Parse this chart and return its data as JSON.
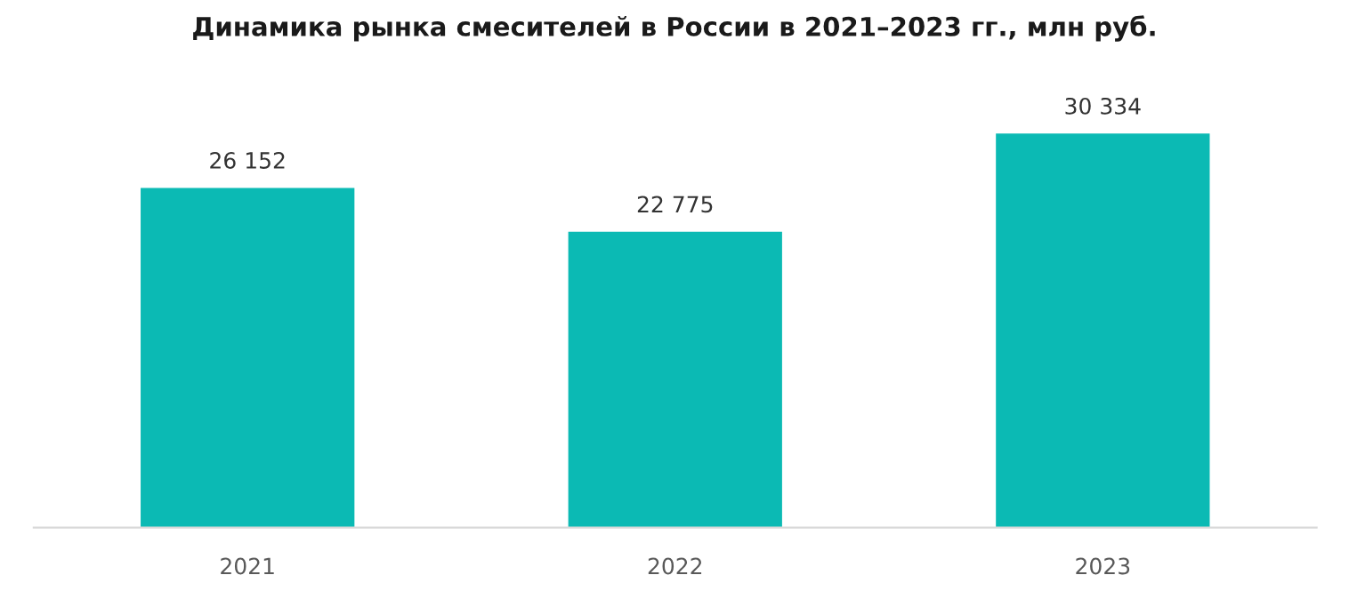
{
  "chart_data": {
    "type": "bar",
    "title": "Динамика рынка смесителей в России в 2021–2023 гг., млн руб.",
    "categories": [
      "2021",
      "2022",
      "2023"
    ],
    "values": [
      26152,
      22775,
      30334
    ],
    "value_labels": [
      "26 152",
      "22 775",
      "30 334"
    ],
    "color": "#0bbab4"
  }
}
